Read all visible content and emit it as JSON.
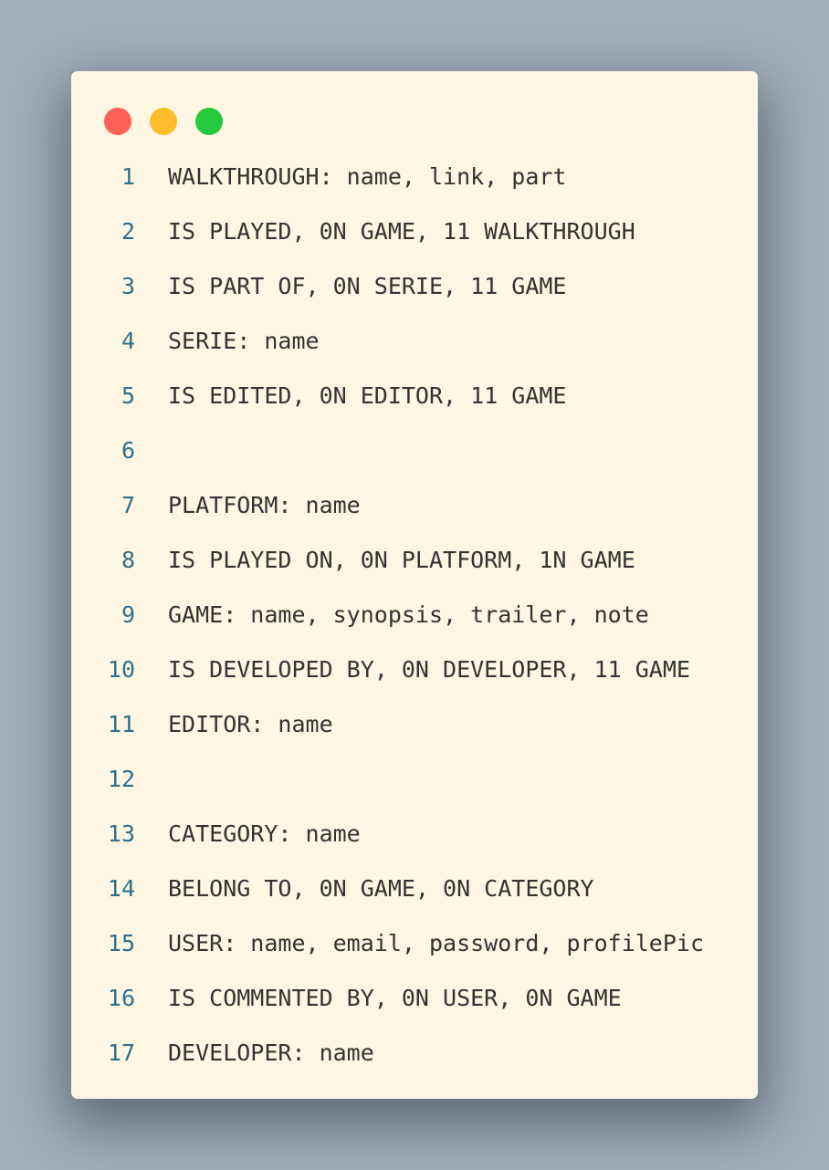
{
  "window": {
    "controls": [
      {
        "name": "close",
        "color": "#ff5f56"
      },
      {
        "name": "minimize",
        "color": "#ffbd2e"
      },
      {
        "name": "zoom",
        "color": "#27c93f"
      }
    ]
  },
  "code": {
    "lines": [
      {
        "num": "1",
        "text": "WALKTHROUGH: name, link, part"
      },
      {
        "num": "2",
        "text": "IS PLAYED, 0N GAME, 11 WALKTHROUGH"
      },
      {
        "num": "3",
        "text": "IS PART OF, 0N SERIE, 11 GAME"
      },
      {
        "num": "4",
        "text": "SERIE: name"
      },
      {
        "num": "5",
        "text": "IS EDITED, 0N EDITOR, 11 GAME"
      },
      {
        "num": "6",
        "text": ""
      },
      {
        "num": "7",
        "text": "PLATFORM: name"
      },
      {
        "num": "8",
        "text": "IS PLAYED ON, 0N PLATFORM, 1N GAME"
      },
      {
        "num": "9",
        "text": "GAME: name, synopsis, trailer, note"
      },
      {
        "num": "10",
        "text": "IS DEVELOPED BY, 0N DEVELOPER, 11 GAME"
      },
      {
        "num": "11",
        "text": "EDITOR: name"
      },
      {
        "num": "12",
        "text": ""
      },
      {
        "num": "13",
        "text": "CATEGORY: name"
      },
      {
        "num": "14",
        "text": "BELONG TO, 0N GAME, 0N CATEGORY"
      },
      {
        "num": "15",
        "text": "USER: name, email, password, profilePic"
      },
      {
        "num": "16",
        "text": "IS COMMENTED BY, 0N USER, 0N GAME"
      },
      {
        "num": "17",
        "text": "DEVELOPER: name"
      }
    ]
  }
}
